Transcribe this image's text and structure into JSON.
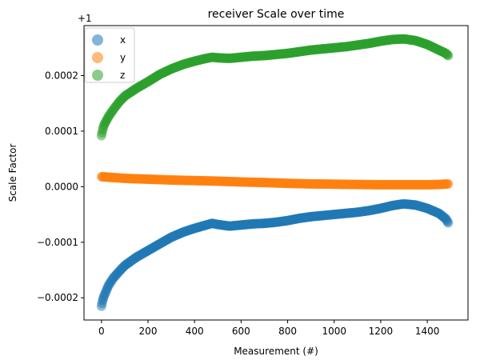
{
  "chart_data": {
    "type": "scatter",
    "title": "receiver Scale over time",
    "xlabel": "Measurement (#)",
    "ylabel": "Scale Factor",
    "offset_label": "+1",
    "xlim": [
      -75,
      1575
    ],
    "ylim": [
      -0.00024,
      0.00029
    ],
    "x_ticks": [
      0,
      200,
      400,
      600,
      800,
      1000,
      1200,
      1400
    ],
    "y_ticks": [
      -0.0002,
      -0.0001,
      0.0,
      0.0001,
      0.0002
    ],
    "y_tick_labels": [
      "−0.0002",
      "−0.0001",
      "0.0000",
      "0.0001",
      "0.0002"
    ],
    "grid": false,
    "legend_position": "top-left",
    "series": [
      {
        "name": "x",
        "color": "#1f77b4",
        "points": [
          [
            0,
            -0.000215
          ],
          [
            5,
            -0.000205
          ],
          [
            10,
            -0.000198
          ],
          [
            20,
            -0.000188
          ],
          [
            30,
            -0.000178
          ],
          [
            50,
            -0.000165
          ],
          [
            75,
            -0.000153
          ],
          [
            100,
            -0.000142
          ],
          [
            150,
            -0.000127
          ],
          [
            200,
            -0.000115
          ],
          [
            250,
            -0.000103
          ],
          [
            300,
            -9.1e-05
          ],
          [
            350,
            -8.2e-05
          ],
          [
            400,
            -7.5e-05
          ],
          [
            450,
            -6.9e-05
          ],
          [
            475,
            -6.6e-05
          ],
          [
            500,
            -6.8e-05
          ],
          [
            550,
            -7.1e-05
          ],
          [
            600,
            -6.9e-05
          ],
          [
            650,
            -6.7e-05
          ],
          [
            700,
            -6.6e-05
          ],
          [
            750,
            -6.4e-05
          ],
          [
            800,
            -6.1e-05
          ],
          [
            850,
            -5.7e-05
          ],
          [
            900,
            -5.4e-05
          ],
          [
            950,
            -5.2e-05
          ],
          [
            1000,
            -5e-05
          ],
          [
            1050,
            -4.8e-05
          ],
          [
            1100,
            -4.6e-05
          ],
          [
            1150,
            -4.3e-05
          ],
          [
            1200,
            -3.9e-05
          ],
          [
            1250,
            -3.4e-05
          ],
          [
            1280,
            -3.2e-05
          ],
          [
            1300,
            -3.1e-05
          ],
          [
            1350,
            -3.3e-05
          ],
          [
            1400,
            -3.9e-05
          ],
          [
            1450,
            -4.8e-05
          ],
          [
            1480,
            -5.8e-05
          ],
          [
            1490,
            -6.5e-05
          ]
        ]
      },
      {
        "name": "y",
        "color": "#ff7f0e",
        "points": [
          [
            0,
            1.8e-05
          ],
          [
            50,
            1.65e-05
          ],
          [
            100,
            1.5e-05
          ],
          [
            200,
            1.35e-05
          ],
          [
            300,
            1.2e-05
          ],
          [
            400,
            1.1e-05
          ],
          [
            500,
            1e-05
          ],
          [
            600,
            8.5e-06
          ],
          [
            700,
            7.5e-06
          ],
          [
            800,
            6e-06
          ],
          [
            900,
            5e-06
          ],
          [
            1000,
            4.5e-06
          ],
          [
            1100,
            4e-06
          ],
          [
            1200,
            3.5e-06
          ],
          [
            1300,
            3.5e-06
          ],
          [
            1400,
            3.5e-06
          ],
          [
            1450,
            4e-06
          ],
          [
            1490,
            5e-06
          ]
        ]
      },
      {
        "name": "z",
        "color": "#2ca02c",
        "points": [
          [
            0,
            9.2e-05
          ],
          [
            5,
            0.000102
          ],
          [
            10,
            0.00011
          ],
          [
            20,
            0.000118
          ],
          [
            30,
            0.000126
          ],
          [
            50,
            0.000138
          ],
          [
            75,
            0.000152
          ],
          [
            100,
            0.000163
          ],
          [
            150,
            0.000177
          ],
          [
            200,
            0.000189
          ],
          [
            250,
            0.000202
          ],
          [
            300,
            0.000212
          ],
          [
            350,
            0.00022
          ],
          [
            400,
            0.000226
          ],
          [
            450,
            0.000231
          ],
          [
            475,
            0.000233
          ],
          [
            500,
            0.000232
          ],
          [
            550,
            0.000231
          ],
          [
            600,
            0.000233
          ],
          [
            650,
            0.000235
          ],
          [
            700,
            0.000236
          ],
          [
            750,
            0.000238
          ],
          [
            800,
            0.00024
          ],
          [
            850,
            0.000243
          ],
          [
            900,
            0.000246
          ],
          [
            950,
            0.000248
          ],
          [
            1000,
            0.00025
          ],
          [
            1050,
            0.000252
          ],
          [
            1100,
            0.000255
          ],
          [
            1150,
            0.000258
          ],
          [
            1200,
            0.000262
          ],
          [
            1250,
            0.000265
          ],
          [
            1300,
            0.000266
          ],
          [
            1350,
            0.000263
          ],
          [
            1400,
            0.000256
          ],
          [
            1450,
            0.000246
          ],
          [
            1480,
            0.00024
          ],
          [
            1490,
            0.000236
          ]
        ]
      }
    ]
  }
}
